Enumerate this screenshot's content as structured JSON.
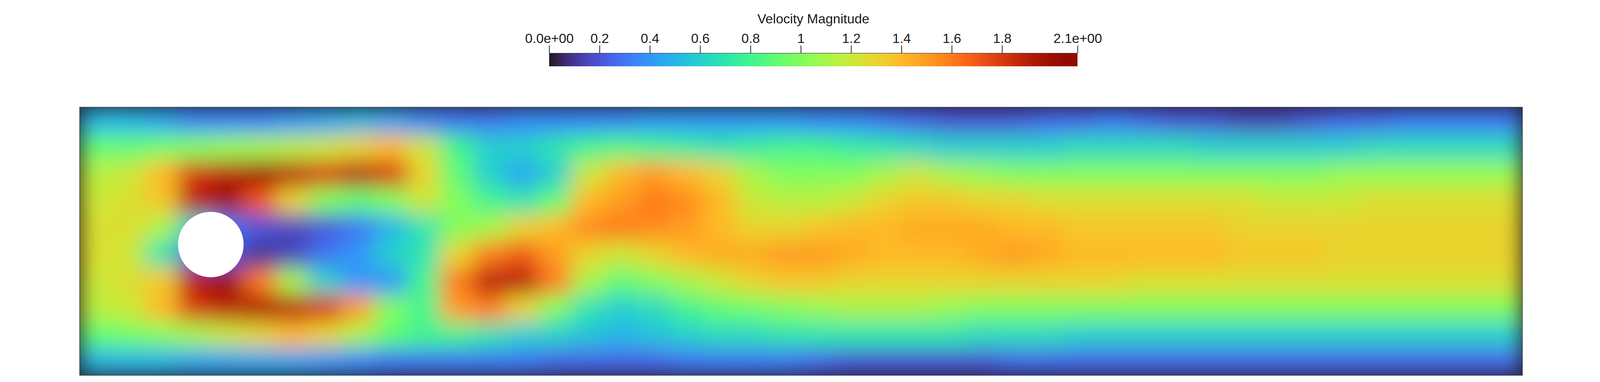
{
  "chart_data": {
    "type": "heatmap",
    "color": "turbo",
    "tick_labels": false,
    "xlim": [
      0,
      2.2
    ],
    "ylim": [
      0,
      0.41
    ],
    "obstacle": {
      "cx": 0.2,
      "cy": 0.2,
      "r": 0.05
    },
    "colorbar": {
      "title": "Velocity Magnitude",
      "range": [
        0,
        2.1
      ],
      "ticks": [
        {
          "value": 0,
          "label": "0.0e+00"
        },
        0.2,
        0.4,
        0.6,
        0.8,
        1,
        1.2,
        1.4,
        1.6,
        1.8,
        {
          "value": 2.1,
          "label": "2.1e+00"
        }
      ]
    },
    "x": [
      0.025,
      0.075,
      0.125,
      0.175,
      0.225,
      0.275,
      0.325,
      0.375,
      0.425,
      0.475,
      0.525,
      0.575,
      0.625,
      0.675,
      0.725,
      0.775,
      0.825,
      0.875,
      0.925,
      0.975,
      1.025,
      1.075,
      1.125,
      1.175,
      1.225,
      1.275,
      1.325,
      1.375,
      1.425,
      1.475,
      1.525,
      1.575,
      1.625,
      1.675,
      1.725,
      1.775,
      1.825,
      1.875,
      1.925,
      1.975,
      2.025,
      2.075,
      2.125,
      2.175
    ],
    "y": [
      0.3895,
      0.3485,
      0.3075,
      0.2665,
      0.2255,
      0.1845,
      0.1435,
      0.1025,
      0.0615,
      0.0205
    ],
    "values": [
      [
        0.5,
        0.5,
        0.45,
        0.35,
        0.35,
        0.35,
        0.4,
        0.45,
        0.5,
        0.45,
        0.35,
        0.3,
        0.3,
        0.35,
        0.35,
        0.35,
        0.35,
        0.4,
        0.4,
        0.4,
        0.4,
        0.4,
        0.35,
        0.35,
        0.3,
        0.25,
        0.2,
        0.2,
        0.2,
        0.25,
        0.25,
        0.3,
        0.25,
        0.2,
        0.2,
        0.15,
        0.15,
        0.2,
        0.25,
        0.25,
        0.3,
        0.3,
        0.3,
        0.3
      ],
      [
        0.9,
        0.9,
        0.95,
        1.0,
        1.05,
        1.1,
        1.15,
        1.2,
        1.3,
        1.4,
        1.2,
        0.8,
        0.6,
        0.6,
        0.7,
        0.8,
        0.85,
        0.8,
        0.75,
        0.7,
        0.75,
        0.8,
        0.8,
        0.75,
        0.7,
        0.65,
        0.6,
        0.6,
        0.6,
        0.6,
        0.65,
        0.65,
        0.65,
        0.65,
        0.6,
        0.6,
        0.6,
        0.6,
        0.6,
        0.65,
        0.65,
        0.65,
        0.65,
        0.65
      ],
      [
        1.15,
        1.2,
        1.4,
        1.8,
        1.9,
        2.0,
        1.9,
        1.8,
        1.9,
        1.8,
        1.3,
        0.9,
        0.6,
        0.45,
        0.6,
        1.2,
        1.4,
        1.5,
        1.4,
        1.3,
        1.1,
        1.0,
        1.0,
        1.0,
        1.1,
        1.2,
        1.1,
        1.05,
        1.0,
        1.0,
        1.0,
        1.0,
        1.0,
        1.0,
        1.0,
        1.0,
        1.0,
        1.0,
        1.05,
        1.05,
        1.05,
        1.05,
        1.05,
        1.05
      ],
      [
        1.2,
        1.25,
        1.35,
        1.9,
        2.0,
        1.7,
        1.3,
        1.0,
        0.9,
        1.0,
        1.2,
        1.0,
        0.8,
        0.7,
        0.9,
        1.4,
        1.5,
        1.6,
        1.55,
        1.4,
        1.2,
        1.15,
        1.15,
        1.2,
        1.3,
        1.35,
        1.35,
        1.3,
        1.3,
        1.25,
        1.25,
        1.25,
        1.25,
        1.25,
        1.25,
        1.25,
        1.2,
        1.2,
        1.2,
        1.25,
        1.25,
        1.25,
        1.25,
        1.25
      ],
      [
        1.25,
        1.25,
        1.1,
        0.6,
        0.3,
        0.2,
        0.15,
        0.2,
        0.3,
        0.5,
        0.7,
        1.0,
        1.1,
        1.3,
        1.4,
        1.55,
        1.6,
        1.55,
        1.5,
        1.4,
        1.3,
        1.3,
        1.35,
        1.4,
        1.4,
        1.45,
        1.45,
        1.45,
        1.4,
        1.4,
        1.35,
        1.35,
        1.35,
        1.35,
        1.35,
        1.3,
        1.3,
        1.3,
        1.3,
        1.3,
        1.3,
        1.3,
        1.3,
        1.3
      ],
      [
        1.25,
        1.2,
        0.7,
        0.2,
        0.2,
        0.1,
        0.15,
        0.3,
        0.4,
        0.6,
        0.7,
        1.3,
        1.6,
        1.7,
        1.5,
        1.3,
        1.2,
        1.3,
        1.4,
        1.45,
        1.45,
        1.5,
        1.5,
        1.45,
        1.4,
        1.4,
        1.4,
        1.45,
        1.5,
        1.45,
        1.4,
        1.4,
        1.4,
        1.4,
        1.4,
        1.35,
        1.35,
        1.35,
        1.3,
        1.3,
        1.3,
        1.3,
        1.3,
        1.3
      ],
      [
        1.2,
        1.25,
        1.35,
        1.9,
        2.0,
        1.6,
        1.1,
        0.6,
        0.4,
        0.4,
        0.8,
        1.6,
        1.9,
        1.9,
        1.6,
        1.1,
        0.9,
        1.0,
        1.1,
        1.2,
        1.3,
        1.35,
        1.35,
        1.3,
        1.3,
        1.3,
        1.3,
        1.3,
        1.3,
        1.3,
        1.3,
        1.3,
        1.25,
        1.25,
        1.25,
        1.25,
        1.25,
        1.25,
        1.25,
        1.25,
        1.25,
        1.25,
        1.25,
        1.25
      ],
      [
        1.15,
        1.2,
        1.4,
        1.8,
        1.9,
        1.95,
        1.9,
        1.8,
        1.5,
        1.0,
        0.8,
        1.5,
        1.6,
        1.3,
        1.0,
        0.7,
        0.6,
        0.65,
        0.8,
        0.9,
        0.95,
        1.0,
        1.05,
        1.1,
        1.1,
        1.1,
        1.05,
        1.0,
        1.0,
        1.0,
        1.0,
        1.0,
        1.0,
        1.0,
        1.0,
        1.0,
        1.0,
        1.0,
        1.0,
        1.0,
        1.0,
        1.0,
        1.0,
        1.0
      ],
      [
        0.9,
        0.95,
        1.0,
        1.1,
        1.2,
        1.3,
        1.4,
        1.3,
        1.1,
        0.9,
        0.8,
        0.8,
        0.7,
        0.6,
        0.6,
        0.55,
        0.5,
        0.55,
        0.6,
        0.65,
        0.65,
        0.7,
        0.7,
        0.7,
        0.7,
        0.7,
        0.7,
        0.65,
        0.65,
        0.65,
        0.6,
        0.6,
        0.6,
        0.6,
        0.6,
        0.6,
        0.6,
        0.6,
        0.6,
        0.6,
        0.6,
        0.6,
        0.6,
        0.6
      ],
      [
        0.5,
        0.5,
        0.5,
        0.45,
        0.45,
        0.45,
        0.45,
        0.4,
        0.35,
        0.3,
        0.3,
        0.3,
        0.3,
        0.3,
        0.25,
        0.25,
        0.25,
        0.25,
        0.3,
        0.3,
        0.3,
        0.3,
        0.25,
        0.2,
        0.2,
        0.2,
        0.2,
        0.2,
        0.25,
        0.25,
        0.25,
        0.25,
        0.25,
        0.25,
        0.25,
        0.25,
        0.25,
        0.25,
        0.25,
        0.25,
        0.25,
        0.25,
        0.25,
        0.25
      ]
    ]
  }
}
